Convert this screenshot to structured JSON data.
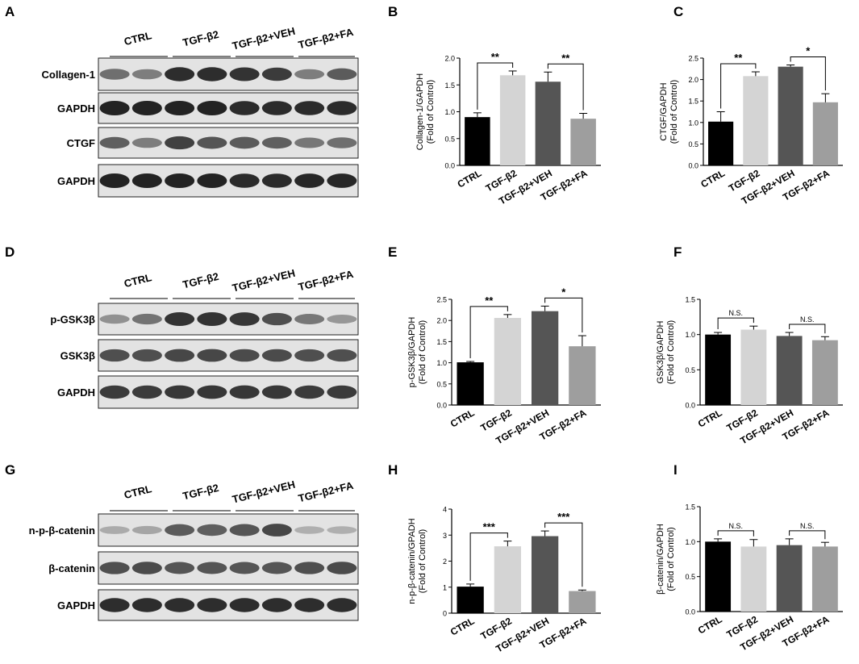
{
  "panels": [
    {
      "id": "A",
      "type": "blot",
      "label": "A",
      "groups": [
        "CTRL",
        "TGF-β2",
        "TGF-β2+VEH",
        "TGF-β2+FA"
      ],
      "bands": [
        {
          "name": "Collagen-1",
          "intensity": [
            0.62,
            0.55,
            0.95,
            0.95,
            0.92,
            0.88,
            0.55,
            0.72
          ]
        },
        {
          "name": "GAPDH",
          "intensity": [
            1,
            1,
            1,
            1,
            0.96,
            0.96,
            0.96,
            0.96
          ]
        },
        {
          "name": "CTGF",
          "intensity": [
            0.7,
            0.55,
            0.85,
            0.75,
            0.72,
            0.7,
            0.58,
            0.62
          ]
        },
        {
          "name": "GAPDH",
          "intensity": [
            1,
            1,
            1,
            1,
            0.96,
            0.96,
            0.98,
            0.98
          ]
        }
      ]
    },
    {
      "id": "D",
      "type": "blot",
      "label": "D",
      "groups": [
        "CTRL",
        "TGF-β2",
        "TGF-β2+VEH",
        "TGF-β2+FA"
      ],
      "bands": [
        {
          "name": "p-GSK3β",
          "intensity": [
            0.45,
            0.6,
            0.92,
            0.92,
            0.9,
            0.78,
            0.58,
            0.42
          ]
        },
        {
          "name": "GSK3β",
          "intensity": [
            0.78,
            0.78,
            0.82,
            0.82,
            0.8,
            0.8,
            0.78,
            0.78
          ]
        },
        {
          "name": "GAPDH",
          "intensity": [
            0.88,
            0.88,
            0.9,
            0.9,
            0.9,
            0.9,
            0.88,
            0.88
          ]
        }
      ]
    },
    {
      "id": "G",
      "type": "blot",
      "label": "G",
      "groups": [
        "CTRL",
        "TGF-β2",
        "TGF-β2+VEH",
        "TGF-β2+FA"
      ],
      "bands": [
        {
          "name": "n-p-β-catenin",
          "intensity": [
            0.32,
            0.35,
            0.72,
            0.7,
            0.75,
            0.82,
            0.3,
            0.3
          ]
        },
        {
          "name": "β-catenin",
          "intensity": [
            0.78,
            0.8,
            0.75,
            0.75,
            0.75,
            0.75,
            0.78,
            0.8
          ]
        },
        {
          "name": "GAPDH",
          "intensity": [
            0.95,
            0.95,
            0.95,
            0.95,
            0.95,
            0.95,
            0.95,
            0.95
          ]
        }
      ]
    }
  ],
  "chart_data": [
    {
      "id": "B",
      "label": "B",
      "type": "bar",
      "categories": [
        "CTRL",
        "TGF-β2",
        "TGF-β2+VEH",
        "TGF-β2+FA"
      ],
      "values": [
        0.9,
        1.68,
        1.56,
        0.87
      ],
      "errors": [
        0.08,
        0.08,
        0.18,
        0.1
      ],
      "ylim": [
        0,
        2.0
      ],
      "yticks": [
        "0.0",
        "0.5",
        "1.0",
        "1.5",
        "2.0"
      ],
      "ylabel": "Collagen-1/GAPDH",
      "ylabel2": "(Fold of Control)",
      "sig": [
        {
          "from": 0,
          "to": 1,
          "text": "**"
        },
        {
          "from": 2,
          "to": 3,
          "text": "**"
        }
      ]
    },
    {
      "id": "C",
      "label": "C",
      "type": "bar",
      "categories": [
        "CTRL",
        "TGF-β2",
        "TGF-β2+VEH",
        "TGF-β2+FA"
      ],
      "values": [
        1.02,
        2.08,
        2.3,
        1.47
      ],
      "errors": [
        0.23,
        0.1,
        0.04,
        0.2
      ],
      "ylim": [
        0,
        2.5
      ],
      "yticks": [
        "0.0",
        "0.5",
        "1.0",
        "1.5",
        "2.0",
        "2.5"
      ],
      "ylabel": "CTGF/GAPDH",
      "ylabel2": "(Fold of Control)",
      "sig": [
        {
          "from": 0,
          "to": 1,
          "text": "**"
        },
        {
          "from": 2,
          "to": 3,
          "text": "*"
        }
      ]
    },
    {
      "id": "E",
      "label": "E",
      "type": "bar",
      "categories": [
        "CTRL",
        "TGF-β2",
        "TGF-β2+VEH",
        "TGF-β2+FA"
      ],
      "values": [
        1.01,
        2.06,
        2.22,
        1.39
      ],
      "errors": [
        0.02,
        0.08,
        0.12,
        0.25
      ],
      "ylim": [
        0,
        2.5
      ],
      "yticks": [
        "0.0",
        "0.5",
        "1.0",
        "1.5",
        "2.0",
        "2.5"
      ],
      "ylabel": "p-GSK3β/GAPDH",
      "ylabel2": "(Fold of Control)",
      "sig": [
        {
          "from": 0,
          "to": 1,
          "text": "**"
        },
        {
          "from": 2,
          "to": 3,
          "text": "*"
        }
      ]
    },
    {
      "id": "F",
      "label": "F",
      "type": "bar",
      "categories": [
        "CTRL",
        "TGF-β2",
        "TGF-β2+VEH",
        "TGF-β2+FA"
      ],
      "values": [
        1.0,
        1.07,
        0.98,
        0.92
      ],
      "errors": [
        0.03,
        0.05,
        0.05,
        0.05
      ],
      "ylim": [
        0,
        1.5
      ],
      "yticks": [
        "0.0",
        "0.5",
        "1.0",
        "1.5"
      ],
      "ylabel": "GSK3β/GAPDH",
      "ylabel2": "(Fold of Control)",
      "sig": [
        {
          "from": 0,
          "to": 1,
          "text": "N.S."
        },
        {
          "from": 2,
          "to": 3,
          "text": "N.S."
        }
      ]
    },
    {
      "id": "H",
      "label": "H",
      "type": "bar",
      "categories": [
        "CTRL",
        "TGF-β2",
        "TGF-β2+VEH",
        "TGF-β2+FA"
      ],
      "values": [
        1.02,
        2.57,
        2.96,
        0.85
      ],
      "errors": [
        0.1,
        0.2,
        0.2,
        0.04
      ],
      "ylim": [
        0,
        4
      ],
      "yticks": [
        "0",
        "1",
        "2",
        "3",
        "4"
      ],
      "ylabel": "n-p-β-catenin/GPADH",
      "ylabel2": "(Fold of Control)",
      "sig": [
        {
          "from": 0,
          "to": 1,
          "text": "***"
        },
        {
          "from": 2,
          "to": 3,
          "text": "***"
        }
      ]
    },
    {
      "id": "I",
      "label": "I",
      "type": "bar",
      "categories": [
        "CTRL",
        "TGF-β2",
        "TGF-β2+VEH",
        "TGF-β2+FA"
      ],
      "values": [
        1.0,
        0.93,
        0.95,
        0.93
      ],
      "errors": [
        0.04,
        0.1,
        0.09,
        0.06
      ],
      "ylim": [
        0,
        1.5
      ],
      "yticks": [
        "0.0",
        "0.5",
        "1.0",
        "1.5"
      ],
      "ylabel": "β-catenin/GAPDH",
      "ylabel2": "(Fold of Control)",
      "sig": [
        {
          "from": 0,
          "to": 1,
          "text": "N.S."
        },
        {
          "from": 2,
          "to": 3,
          "text": "N.S."
        }
      ]
    }
  ],
  "colors": {
    "bars": [
      "#000000",
      "#d4d4d4",
      "#555555",
      "#9e9e9e"
    ],
    "axis": "#000000"
  }
}
